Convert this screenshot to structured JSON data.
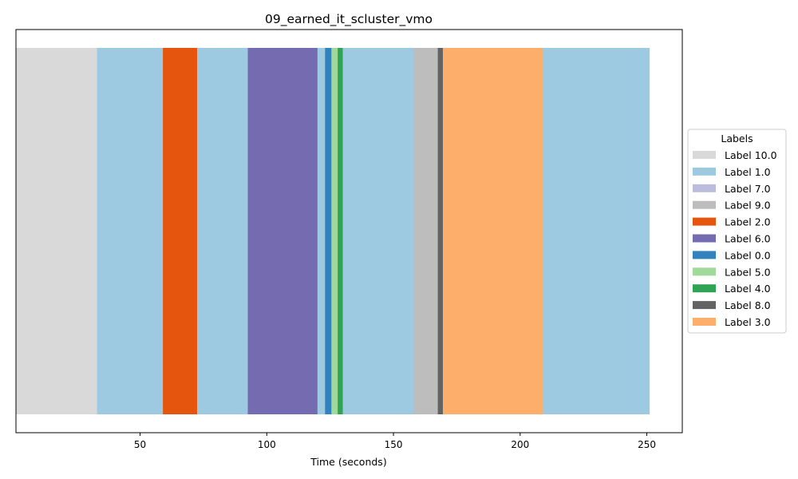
{
  "chart_data": {
    "type": "bar",
    "orientation": "horizontal-timeline",
    "title": "09_earned_it_scluster_vmo",
    "xlabel": "Time (seconds)",
    "ylabel": "",
    "xlim": [
      1,
      264
    ],
    "xticks": [
      50,
      100,
      150,
      200,
      250
    ],
    "grid": false,
    "legend": {
      "title": "Labels",
      "placement": "center-right-outside",
      "entries": [
        {
          "label": "Label 10.0",
          "color": "#d9d9d9"
        },
        {
          "label": "Label 1.0",
          "color": "#9ecae1"
        },
        {
          "label": "Label 7.0",
          "color": "#bcbddc"
        },
        {
          "label": "Label 9.0",
          "color": "#bdbdbd"
        },
        {
          "label": "Label 2.0",
          "color": "#e6550d"
        },
        {
          "label": "Label 6.0",
          "color": "#756bb1"
        },
        {
          "label": "Label 0.0",
          "color": "#3182bd"
        },
        {
          "label": "Label 5.0",
          "color": "#a1d99b"
        },
        {
          "label": "Label 4.0",
          "color": "#31a354"
        },
        {
          "label": "Label 8.0",
          "color": "#636363"
        },
        {
          "label": "Label 3.0",
          "color": "#fdae6b"
        }
      ]
    },
    "segments": [
      {
        "label": "Label 10.0",
        "start": 1.0,
        "end": 33.0
      },
      {
        "label": "Label 1.0",
        "start": 33.0,
        "end": 59.0
      },
      {
        "label": "Label 2.0",
        "start": 59.0,
        "end": 72.5
      },
      {
        "label": "Label 1.0",
        "start": 72.5,
        "end": 92.5
      },
      {
        "label": "Label 6.0",
        "start": 92.5,
        "end": 120.0
      },
      {
        "label": "Label 1.0",
        "start": 120.0,
        "end": 123.0
      },
      {
        "label": "Label 0.0",
        "start": 123.0,
        "end": 125.5
      },
      {
        "label": "Label 5.0",
        "start": 125.5,
        "end": 128.0
      },
      {
        "label": "Label 4.0",
        "start": 128.0,
        "end": 130.0
      },
      {
        "label": "Label 1.0",
        "start": 130.0,
        "end": 158.0
      },
      {
        "label": "Label 9.0",
        "start": 158.0,
        "end": 167.5
      },
      {
        "label": "Label 8.0",
        "start": 167.5,
        "end": 169.5
      },
      {
        "label": "Label 3.0",
        "start": 169.5,
        "end": 209.0
      },
      {
        "label": "Label 1.0",
        "start": 209.0,
        "end": 251.0
      }
    ]
  }
}
